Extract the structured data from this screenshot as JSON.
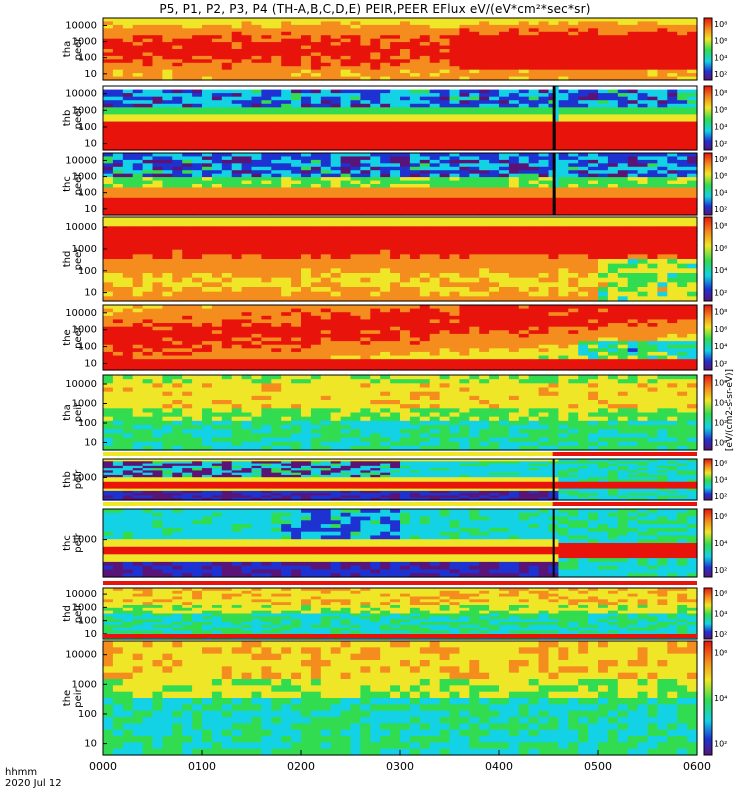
{
  "title": "P5, P1, P2, P3, P4 (TH-A,B,C,D,E) PEIR,PEER EFlux eV/(eV*cm²*sec*sr)",
  "colorbar_unit": "[eV/(cm2-s-sr-eV)]",
  "footer": {
    "time_label": "hhmm",
    "date_label": "2020 Jul 12"
  },
  "colors": {
    "red": "#e8140c",
    "orange": "#f58c1e",
    "yellow": "#f0e628",
    "green": "#32dc50",
    "cyan": "#14d2e6",
    "blue": "#1e32d2",
    "purple": "#5a1478",
    "black": "#000000",
    "white": "#ffffff"
  },
  "chart_data": {
    "type": "heatmap",
    "title": "P5, P1, P2, P3, P4 (TH-A,B,C,D,E) PEIR,PEER EFlux eV/(eV*cm²*sec*sr)",
    "x_ticks": [
      "0000",
      "0100",
      "0200",
      "0300",
      "0400",
      "0500",
      "0600"
    ],
    "xlim": [
      "0000",
      "0600"
    ],
    "x_units": "hhmm",
    "panels": [
      {
        "id": "tha-peer",
        "label_top": "tha",
        "label_bottom": "peer",
        "species": "electron",
        "scale": "log",
        "yticks": [
          "10000",
          "1000",
          "100",
          "10"
        ],
        "cbar_ticks": [
          "10⁸",
          "10⁶",
          "10⁴",
          "10²"
        ],
        "features": "broad red/orange electron flux; enhancement after ~0340"
      },
      {
        "id": "thb-peer",
        "label_top": "thb",
        "label_bottom": "peer",
        "species": "electron",
        "scale": "log",
        "yticks": [
          "10000",
          "1000",
          "100",
          "10"
        ],
        "cbar_ticks": [
          "10⁸",
          "10⁶",
          "10⁴",
          "10²"
        ],
        "features": "noisy cyan/blue high energies, red low energies; data gap near 0430"
      },
      {
        "id": "thc-peer",
        "label_top": "thc",
        "label_bottom": "peer",
        "species": "electron",
        "scale": "log",
        "yticks": [
          "10000",
          "1000",
          "100",
          "10"
        ],
        "cbar_ticks": [
          "10⁸",
          "10⁶",
          "10⁴",
          "10²"
        ],
        "features": "similar to thb; data gap near 0430"
      },
      {
        "id": "thd-peer",
        "label_top": "thd",
        "label_bottom": "peer",
        "species": "electron",
        "scale": "log",
        "yticks": [
          "10000",
          "1000",
          "100",
          "10"
        ],
        "cbar_ticks": [
          "10⁸",
          "10⁶",
          "10⁴",
          "10²"
        ],
        "features": "strong red flux; change near 0510"
      },
      {
        "id": "the-peer",
        "label_top": "the",
        "label_bottom": "peer",
        "species": "electron",
        "scale": "log",
        "yticks": [
          "10000",
          "1000",
          "100",
          "10"
        ],
        "cbar_ticks": [
          "10⁸",
          "10⁶",
          "10⁴",
          "10²"
        ],
        "features": "red/orange band; structure after ~0500"
      },
      {
        "id": "tha-peir",
        "label_top": "tha",
        "label_bottom": "peir",
        "species": "ion",
        "scale": "log",
        "yticks": [
          "10000",
          "1000",
          "100",
          "10"
        ],
        "cbar_ticks": [
          "10⁶",
          "10⁴",
          "10²",
          "10⁰"
        ],
        "features": "orange/yellow high-energy ion band; green low energies"
      },
      {
        "id": "thb-peir",
        "label_top": "thb",
        "label_bottom": "peir",
        "species": "ion",
        "scale": "log",
        "yticks": [
          "1000"
        ],
        "cbar_ticks": [
          "10⁶",
          "10⁴",
          "10²"
        ],
        "features": "banded spectrum; red band after ~0430"
      },
      {
        "id": "thc-peir",
        "label_top": "thc",
        "label_bottom": "peir",
        "species": "ion",
        "scale": "log",
        "yticks": [
          "1000"
        ],
        "cbar_ticks": [
          "10⁶",
          "10⁴",
          "10²"
        ],
        "features": "banded spectrum; red band after ~0430"
      },
      {
        "id": "thd-peir",
        "label_top": "thd",
        "label_bottom": "peir",
        "species": "ion",
        "scale": "log",
        "yticks": [
          "10000",
          "1000",
          "100",
          "10"
        ],
        "cbar_ticks": [
          "10⁶",
          "10⁴",
          "10²"
        ],
        "features": "orange/yellow high energies, green/cyan low energies"
      },
      {
        "id": "the-peir",
        "label_top": "the",
        "label_bottom": "peir",
        "species": "ion",
        "scale": "log",
        "yticks": [
          "10000",
          "1000",
          "100",
          "10"
        ],
        "cbar_ticks": [
          "10⁶",
          "10⁴",
          "10²"
        ],
        "features": "orange/yellow high energies, green/cyan low energies"
      }
    ]
  }
}
